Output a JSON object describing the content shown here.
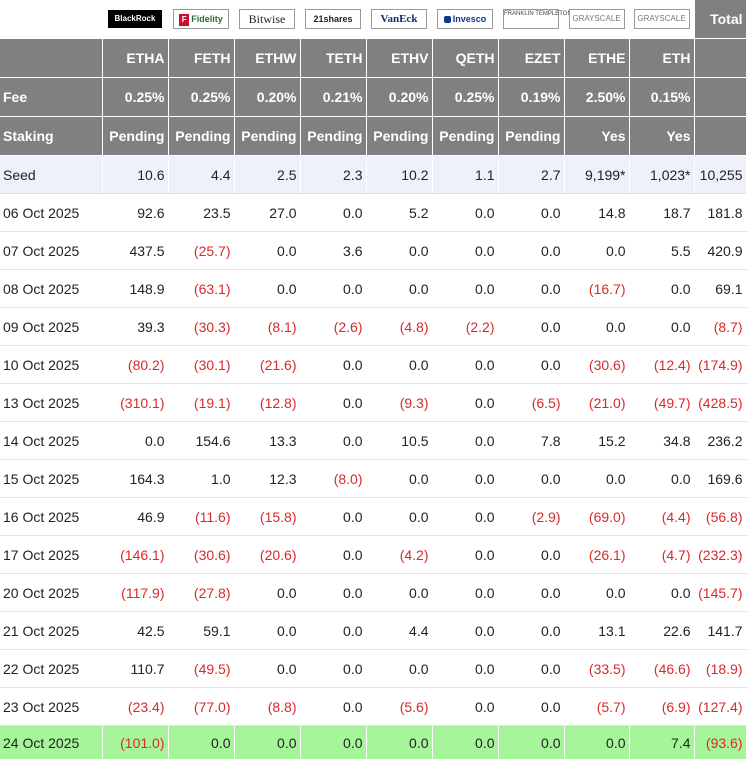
{
  "issuers": [
    {
      "logo_text": "BlackRock",
      "icon": "blackrock-logo"
    },
    {
      "logo_text": "Fidelity",
      "icon": "fidelity-logo"
    },
    {
      "logo_text": "Bitwise",
      "icon": "bitwise-logo"
    },
    {
      "logo_text": "21shares",
      "icon": "21shares-logo"
    },
    {
      "logo_text": "VanEck",
      "icon": "vaneck-logo"
    },
    {
      "logo_text": "Invesco",
      "icon": "invesco-logo"
    },
    {
      "logo_text": "FRANKLIN TEMPLETON",
      "icon": "franklin-templeton-logo"
    },
    {
      "logo_text": "GRAYSCALE",
      "icon": "grayscale-logo"
    },
    {
      "logo_text": "GRAYSCALE",
      "icon": "grayscale-logo"
    }
  ],
  "total_label": "Total",
  "tickers": [
    "ETHA",
    "FETH",
    "ETHW",
    "TETH",
    "ETHV",
    "QETH",
    "EZET",
    "ETHE",
    "ETH"
  ],
  "fee": {
    "label": "Fee",
    "values": [
      "0.25%",
      "0.25%",
      "0.20%",
      "0.21%",
      "0.20%",
      "0.25%",
      "0.19%",
      "2.50%",
      "0.15%"
    ]
  },
  "staking": {
    "label": "Staking",
    "values": [
      "Pending",
      "Pending",
      "Pending",
      "Pending",
      "Pending",
      "Pending",
      "Pending",
      "Yes",
      "Yes"
    ]
  },
  "rows": [
    {
      "label": "Seed",
      "cells": [
        "10.6",
        "4.4",
        "2.5",
        "2.3",
        "10.2",
        "1.1",
        "2.7",
        "9,199*",
        "1,023*",
        "10,255"
      ]
    },
    {
      "label": "06 Oct 2025",
      "cells": [
        "92.6",
        "23.5",
        "27.0",
        "0.0",
        "5.2",
        "0.0",
        "0.0",
        "14.8",
        "18.7",
        "181.8"
      ]
    },
    {
      "label": "07 Oct 2025",
      "cells": [
        "437.5",
        "(25.7)",
        "0.0",
        "3.6",
        "0.0",
        "0.0",
        "0.0",
        "0.0",
        "5.5",
        "420.9"
      ]
    },
    {
      "label": "08 Oct 2025",
      "cells": [
        "148.9",
        "(63.1)",
        "0.0",
        "0.0",
        "0.0",
        "0.0",
        "0.0",
        "(16.7)",
        "0.0",
        "69.1"
      ]
    },
    {
      "label": "09 Oct 2025",
      "cells": [
        "39.3",
        "(30.3)",
        "(8.1)",
        "(2.6)",
        "(4.8)",
        "(2.2)",
        "0.0",
        "0.0",
        "0.0",
        "(8.7)"
      ]
    },
    {
      "label": "10 Oct 2025",
      "cells": [
        "(80.2)",
        "(30.1)",
        "(21.6)",
        "0.0",
        "0.0",
        "0.0",
        "0.0",
        "(30.6)",
        "(12.4)",
        "(174.9)"
      ]
    },
    {
      "label": "13 Oct 2025",
      "cells": [
        "(310.1)",
        "(19.1)",
        "(12.8)",
        "0.0",
        "(9.3)",
        "0.0",
        "(6.5)",
        "(21.0)",
        "(49.7)",
        "(428.5)"
      ]
    },
    {
      "label": "14 Oct 2025",
      "cells": [
        "0.0",
        "154.6",
        "13.3",
        "0.0",
        "10.5",
        "0.0",
        "7.8",
        "15.2",
        "34.8",
        "236.2"
      ]
    },
    {
      "label": "15 Oct 2025",
      "cells": [
        "164.3",
        "1.0",
        "12.3",
        "(8.0)",
        "0.0",
        "0.0",
        "0.0",
        "0.0",
        "0.0",
        "169.6"
      ]
    },
    {
      "label": "16 Oct 2025",
      "cells": [
        "46.9",
        "(11.6)",
        "(15.8)",
        "0.0",
        "0.0",
        "0.0",
        "(2.9)",
        "(69.0)",
        "(4.4)",
        "(56.8)"
      ]
    },
    {
      "label": "17 Oct 2025",
      "cells": [
        "(146.1)",
        "(30.6)",
        "(20.6)",
        "0.0",
        "(4.2)",
        "0.0",
        "0.0",
        "(26.1)",
        "(4.7)",
        "(232.3)"
      ]
    },
    {
      "label": "20 Oct 2025",
      "cells": [
        "(117.9)",
        "(27.8)",
        "0.0",
        "0.0",
        "0.0",
        "0.0",
        "0.0",
        "0.0",
        "0.0",
        "(145.7)"
      ]
    },
    {
      "label": "21 Oct 2025",
      "cells": [
        "42.5",
        "59.1",
        "0.0",
        "0.0",
        "4.4",
        "0.0",
        "0.0",
        "13.1",
        "22.6",
        "141.7"
      ]
    },
    {
      "label": "22 Oct 2025",
      "cells": [
        "110.7",
        "(49.5)",
        "0.0",
        "0.0",
        "0.0",
        "0.0",
        "0.0",
        "(33.5)",
        "(46.6)",
        "(18.9)"
      ]
    },
    {
      "label": "23 Oct 2025",
      "cells": [
        "(23.4)",
        "(77.0)",
        "(8.8)",
        "0.0",
        "(5.6)",
        "0.0",
        "0.0",
        "(5.7)",
        "(6.9)",
        "(127.4)"
      ]
    },
    {
      "label": "24 Oct 2025",
      "cells": [
        "(101.0)",
        "0.0",
        "0.0",
        "0.0",
        "0.0",
        "0.0",
        "0.0",
        "0.0",
        "7.4",
        "(93.6)"
      ]
    }
  ],
  "colors": {
    "header_bg": "#808080",
    "negative": "#d82a2a",
    "seed_bg": "#eef0fb",
    "latest_bg": "#a6f59a"
  }
}
